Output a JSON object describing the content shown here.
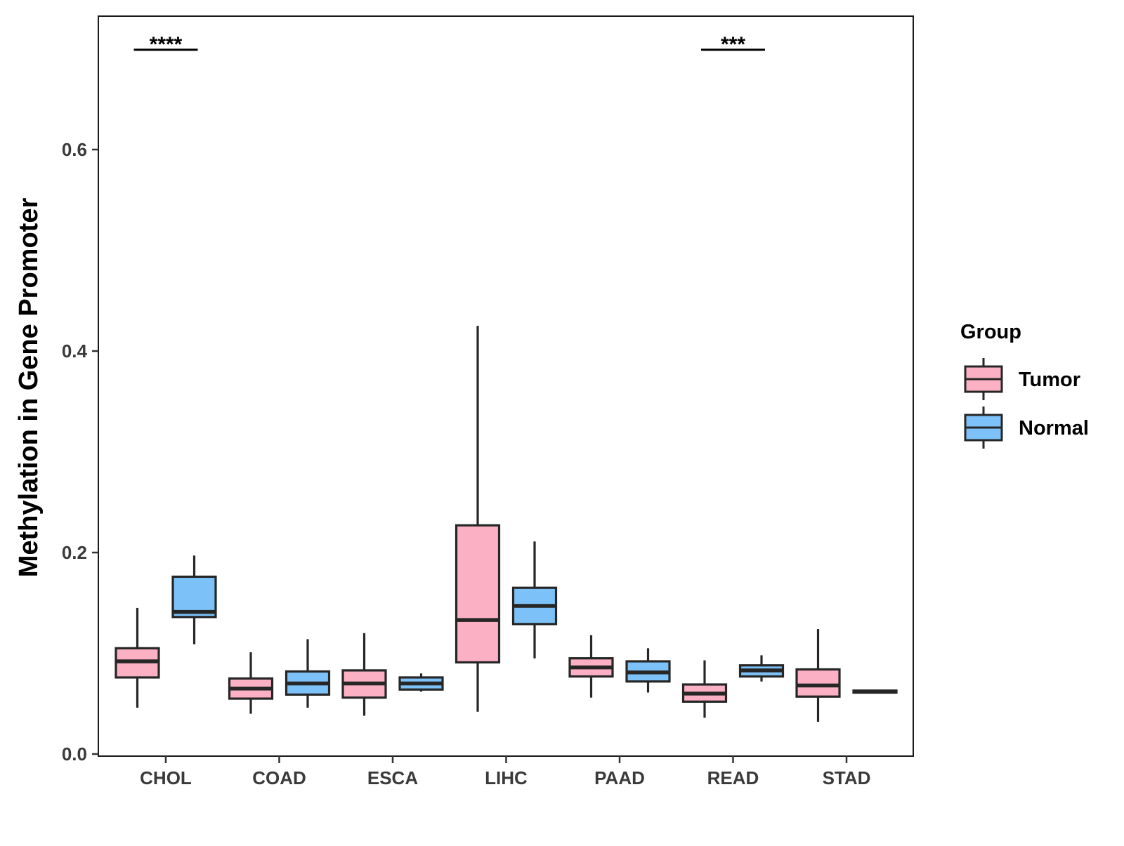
{
  "chart_data": {
    "type": "boxplot",
    "title": "",
    "xlabel": "",
    "ylabel": "Methylation in Gene Promoter",
    "ylim": [
      0,
      0.73
    ],
    "yticks": [
      0.0,
      0.2,
      0.4,
      0.6
    ],
    "ytick_labels": [
      "0.0",
      "0.2",
      "0.4",
      "0.6"
    ],
    "categories": [
      "CHOL",
      "COAD",
      "ESCA",
      "LIHC",
      "PAAD",
      "READ",
      "STAD"
    ],
    "legend": {
      "title": "Group",
      "position": "right",
      "entries": [
        {
          "name": "Tumor",
          "color": "#FBB1C3"
        },
        {
          "name": "Normal",
          "color": "#7CC2F8"
        }
      ]
    },
    "series": [
      {
        "name": "Tumor",
        "color": "#FBB1C3",
        "boxes": [
          {
            "category": "CHOL",
            "min": 0.046,
            "q1": 0.076,
            "median": 0.092,
            "q3": 0.105,
            "max": 0.145
          },
          {
            "category": "COAD",
            "min": 0.04,
            "q1": 0.055,
            "median": 0.065,
            "q3": 0.075,
            "max": 0.101
          },
          {
            "category": "ESCA",
            "min": 0.038,
            "q1": 0.056,
            "median": 0.07,
            "q3": 0.083,
            "max": 0.12
          },
          {
            "category": "LIHC",
            "min": 0.042,
            "q1": 0.091,
            "median": 0.133,
            "q3": 0.227,
            "max": 0.425
          },
          {
            "category": "PAAD",
            "min": 0.056,
            "q1": 0.077,
            "median": 0.086,
            "q3": 0.095,
            "max": 0.118
          },
          {
            "category": "READ",
            "min": 0.036,
            "q1": 0.052,
            "median": 0.06,
            "q3": 0.069,
            "max": 0.093
          },
          {
            "category": "STAD",
            "min": 0.032,
            "q1": 0.057,
            "median": 0.068,
            "q3": 0.084,
            "max": 0.124
          }
        ]
      },
      {
        "name": "Normal",
        "color": "#7CC2F8",
        "boxes": [
          {
            "category": "CHOL",
            "min": 0.109,
            "q1": 0.136,
            "median": 0.141,
            "q3": 0.176,
            "max": 0.197
          },
          {
            "category": "COAD",
            "min": 0.046,
            "q1": 0.059,
            "median": 0.07,
            "q3": 0.082,
            "max": 0.114
          },
          {
            "category": "ESCA",
            "min": 0.062,
            "q1": 0.064,
            "median": 0.07,
            "q3": 0.076,
            "max": 0.08
          },
          {
            "category": "LIHC",
            "min": 0.095,
            "q1": 0.129,
            "median": 0.147,
            "q3": 0.165,
            "max": 0.211
          },
          {
            "category": "PAAD",
            "min": 0.061,
            "q1": 0.072,
            "median": 0.081,
            "q3": 0.092,
            "max": 0.105
          },
          {
            "category": "READ",
            "min": 0.072,
            "q1": 0.077,
            "median": 0.083,
            "q3": 0.088,
            "max": 0.098
          },
          {
            "category": "STAD",
            "min": 0.061,
            "q1": 0.061,
            "median": 0.062,
            "q3": 0.063,
            "max": 0.063
          }
        ]
      }
    ],
    "annotations": [
      {
        "category": "CHOL",
        "label": "****",
        "y": 0.699
      },
      {
        "category": "READ",
        "label": "***",
        "y": 0.699
      }
    ]
  }
}
